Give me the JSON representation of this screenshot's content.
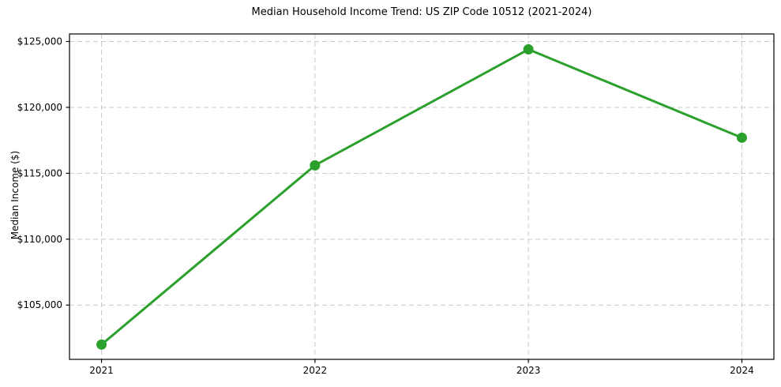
{
  "page": {
    "background_color": "#ffffff",
    "text_color": "#000000"
  },
  "chart_data": {
    "type": "line",
    "title": "Median Household Income Trend: US ZIP Code 10512 (2021-2024)",
    "xlabel": "",
    "ylabel": "Median Income ($)",
    "x": [
      2021,
      2022,
      2023,
      2024
    ],
    "series": [
      {
        "values": [
          102000,
          115600,
          124400,
          117700
        ],
        "color": "#2ca02c",
        "marker": "circle"
      }
    ],
    "xlim": [
      2020.85,
      2024.15
    ],
    "ylim": [
      100880,
      125570
    ],
    "xticks": {
      "values": [
        2021,
        2022,
        2023,
        2024
      ],
      "labels": [
        "2021",
        "2022",
        "2023",
        "2024"
      ]
    },
    "yticks": {
      "values": [
        105000,
        110000,
        115000,
        120000,
        125000
      ],
      "labels": [
        "$105,000",
        "$110,000",
        "$115,000",
        "$120,000",
        "$125,000"
      ]
    },
    "grid": true,
    "grid_style": "dashed",
    "grid_color": "#c9c9c9",
    "spine_color": "#000000",
    "legend": false
  }
}
